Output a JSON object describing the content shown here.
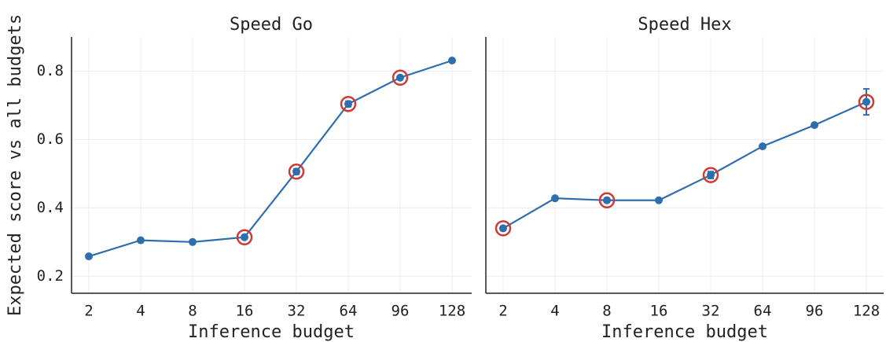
{
  "figure": {
    "ylabel": "Expected score vs all budgets"
  },
  "chart_data": [
    {
      "type": "line",
      "title": "Speed Go",
      "xlabel": "Inference budget",
      "ylabel": "Expected score vs all budgets",
      "categories": [
        "2",
        "4",
        "8",
        "16",
        "32",
        "64",
        "96",
        "128"
      ],
      "values": [
        0.258,
        0.305,
        0.3,
        0.314,
        0.506,
        0.704,
        0.781,
        0.831
      ],
      "errors": [
        0,
        0,
        0,
        0,
        0.008,
        0.008,
        0,
        0
      ],
      "highlighted": [
        "16",
        "32",
        "64",
        "96"
      ],
      "ylim": [
        0.15,
        0.9
      ],
      "yticks": [
        0.2,
        0.4,
        0.6,
        0.8
      ],
      "grid": true,
      "line_color": "#2f6ead",
      "highlight_color": "#cf3a35"
    },
    {
      "type": "line",
      "title": "Speed Hex",
      "xlabel": "Inference budget",
      "categories": [
        "2",
        "4",
        "8",
        "16",
        "32",
        "64",
        "96",
        "128"
      ],
      "values": [
        0.34,
        0.428,
        0.422,
        0.422,
        0.496,
        0.58,
        0.642,
        0.71
      ],
      "errors": [
        0.006,
        0,
        0.006,
        0,
        0.01,
        0,
        0,
        0.038
      ],
      "highlighted": [
        "2",
        "8",
        "32",
        "128"
      ],
      "ylim": [
        0.15,
        0.9
      ],
      "yticks": [
        0.2,
        0.4,
        0.6,
        0.8
      ],
      "grid": true,
      "line_color": "#2f6ead",
      "highlight_color": "#cf3a35"
    }
  ]
}
